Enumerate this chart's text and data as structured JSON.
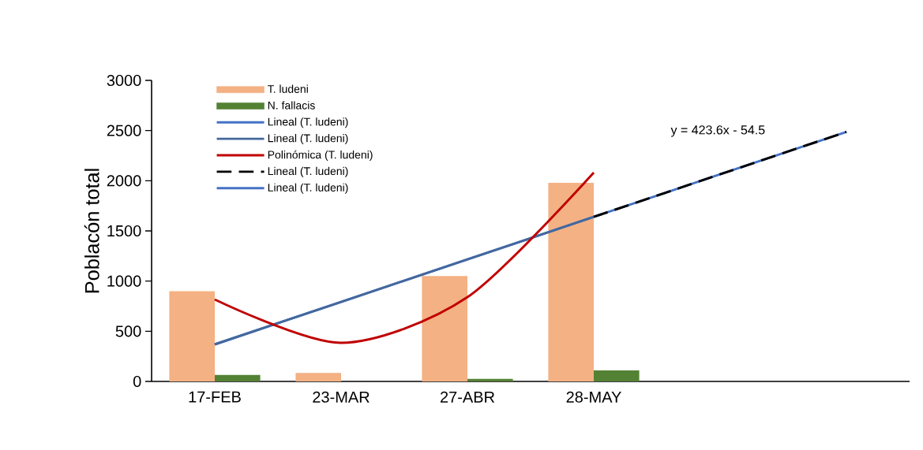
{
  "chart_data": {
    "type": "bar",
    "ylabel": "Poblacón total",
    "categories": [
      "17-FEB",
      "23-MAR",
      "27-ABR",
      "28-MAY",
      null,
      null
    ],
    "ylim": [
      0,
      3000
    ],
    "yticks": [
      0,
      500,
      1000,
      1500,
      2000,
      2500,
      3000
    ],
    "grid": false,
    "legend": "top left",
    "annotations": [
      "y = 423.6x - 54.5"
    ],
    "series": [
      {
        "name": "T. ludeni",
        "type": "bar",
        "color": "#f4b183",
        "values": [
          900,
          85,
          1050,
          1980,
          null,
          null
        ]
      },
      {
        "name": "N. fallacis",
        "type": "bar",
        "color": "#548235",
        "values": [
          65,
          0,
          25,
          110,
          null,
          null
        ]
      },
      {
        "name": "Lineal (T. ludeni)",
        "type": "line",
        "color": "#4472c4",
        "line_style": "solid",
        "values": [
          369,
          793,
          1216,
          1640,
          null,
          null
        ]
      },
      {
        "name": "Lineal (T. ludeni)",
        "type": "line",
        "color": "#44689e",
        "line_style": "solid",
        "values": [
          369,
          793,
          1216,
          1640,
          null,
          null
        ]
      },
      {
        "name": "Polinómica (T. ludeni)",
        "type": "line",
        "color": "#c00000",
        "line_style": "solid",
        "values": [
          817,
          385,
          840,
          2081,
          null,
          null
        ]
      },
      {
        "name": "Lineal (T. ludeni)",
        "type": "line",
        "color": "#000000",
        "line_style": "dashed",
        "values": [
          null,
          null,
          null,
          1640,
          2064,
          2487
        ]
      },
      {
        "name": "Lineal (T. ludeni)",
        "type": "line",
        "color": "#4472c4",
        "line_style": "solid",
        "values": [
          null,
          null,
          null,
          1640,
          2064,
          2487
        ]
      }
    ]
  }
}
